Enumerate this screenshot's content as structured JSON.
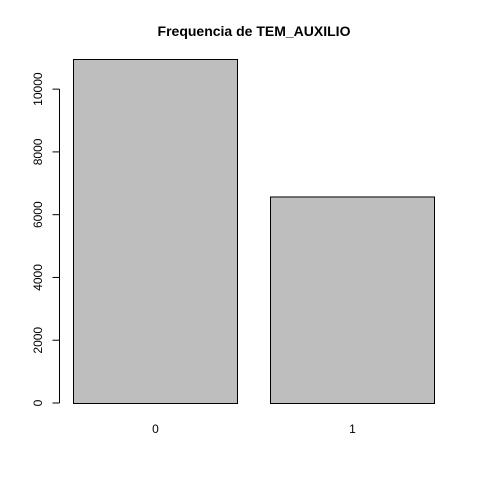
{
  "chart_data": {
    "type": "bar",
    "title": "Frequencia de TEM_AUXILIO",
    "xlabel": "",
    "ylabel": "",
    "categories": [
      "0",
      "1"
    ],
    "values": [
      10960,
      6580
    ],
    "ylim": [
      0,
      11000
    ],
    "y_ticks": [
      "0",
      "2000",
      "4000",
      "6000",
      "8000",
      "10000"
    ],
    "grid": false,
    "bar_color": "#bebebe",
    "legend": "none"
  }
}
